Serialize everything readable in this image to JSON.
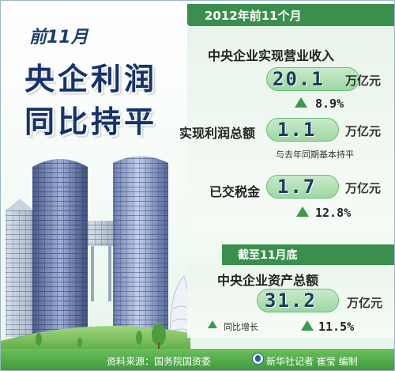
{
  "title": {
    "period": "前11月",
    "headline_line1": "央企利润",
    "headline_line2": "同比持平"
  },
  "header": {
    "year_label": "2012年前11个月"
  },
  "metrics": [
    {
      "label": "中央企业实现营业收入",
      "value": "20.1",
      "unit": "万亿元",
      "change": "8.9%",
      "change_dir": "up"
    },
    {
      "label": "实现利润总额",
      "value": "1.1",
      "unit": "万亿元",
      "note": "与去年同期基本持平"
    },
    {
      "label": "已交税金",
      "value": "1.7",
      "unit": "万亿元",
      "change": "12.8%",
      "change_dir": "up"
    }
  ],
  "assets": {
    "header": "截至11月底",
    "label": "中央企业资产总额",
    "value": "31.2",
    "unit": "万亿元",
    "legend": "同比增长",
    "change": "11.5%"
  },
  "footer": {
    "source": "资料来源：国务院国资委",
    "credit": "新华社记者 崔莹 编制"
  },
  "colors": {
    "accent_green": "#3b8f4e",
    "title_blue": "#16326a",
    "up_arrow": "#3b9b4d"
  },
  "icons": [
    "up-triangle-icon",
    "xinhua-logo-icon"
  ]
}
